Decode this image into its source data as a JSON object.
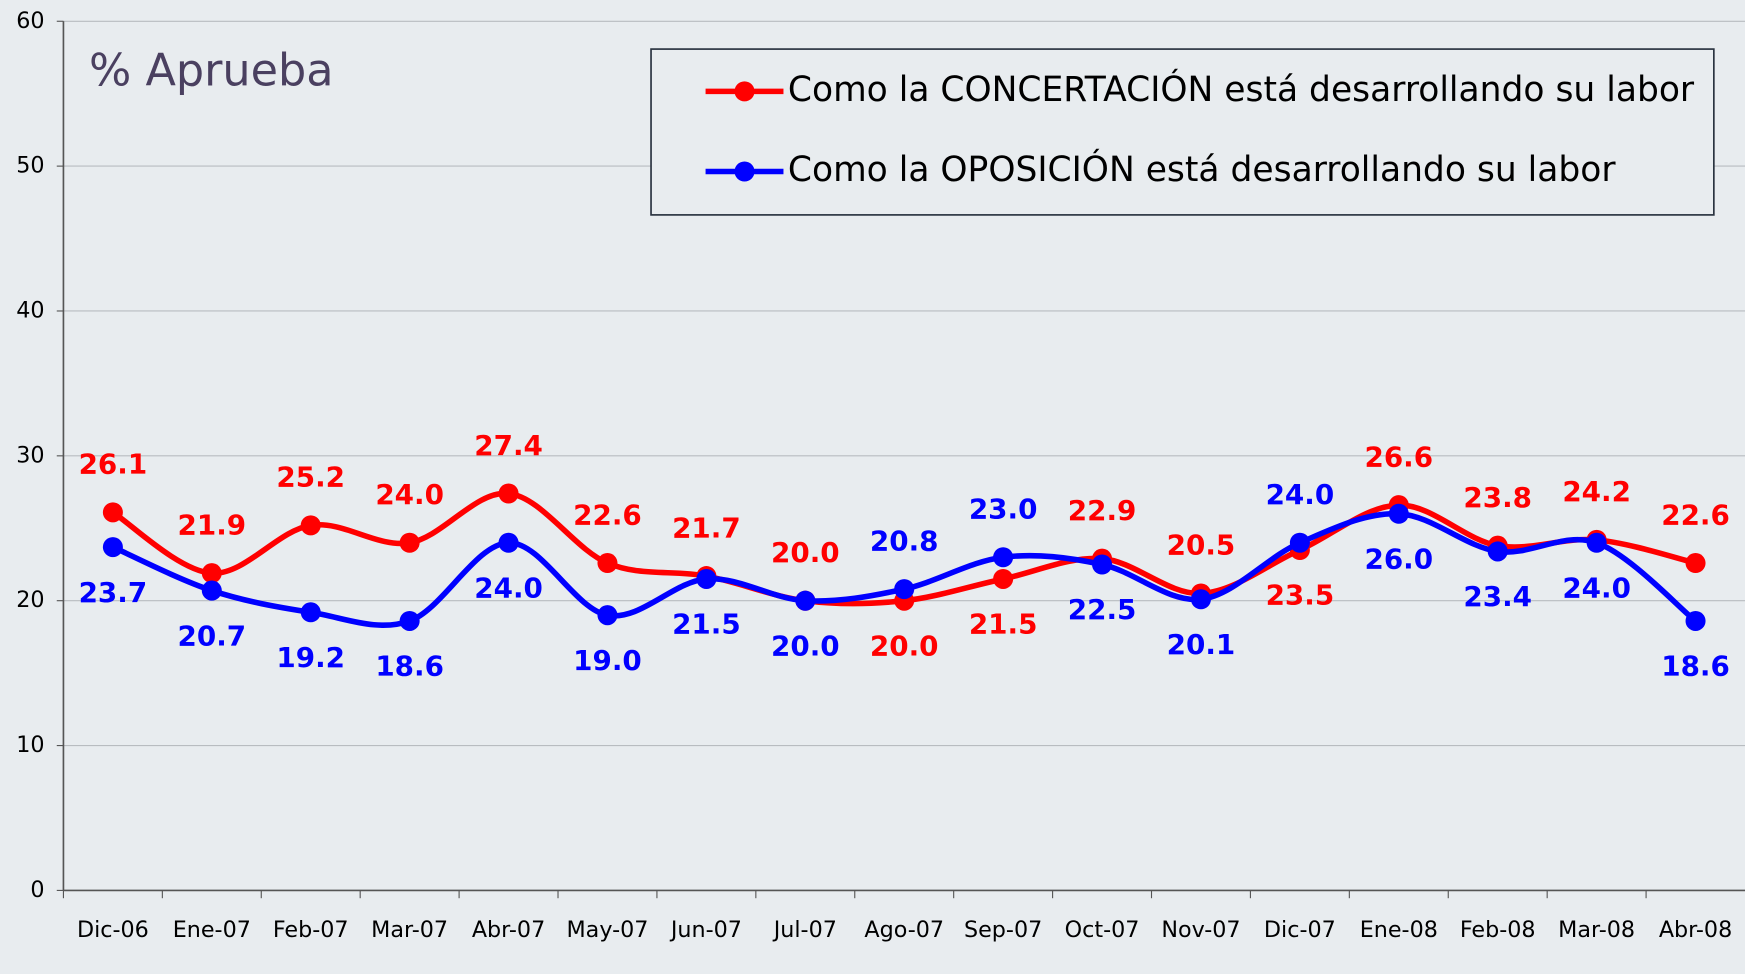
{
  "chart_data": {
    "type": "line",
    "title": "% Aprueba",
    "categories": [
      "Dic-06",
      "Ene-07",
      "Feb-07",
      "Mar-07",
      "Abr-07",
      "May-07",
      "Jun-07",
      "Jul-07",
      "Ago-07",
      "Sep-07",
      "Oct-07",
      "Nov-07",
      "Dic-07",
      "Ene-08",
      "Feb-08",
      "Mar-08",
      "Abr-08"
    ],
    "series": [
      {
        "name": "Como la CONCERTACIÓN está desarrollando su labor",
        "color": "#ff0000",
        "values": [
          26.1,
          21.9,
          25.2,
          24.0,
          27.4,
          22.6,
          21.7,
          20.0,
          20.0,
          21.5,
          22.9,
          20.5,
          23.5,
          26.6,
          23.8,
          24.2,
          22.6
        ],
        "value_labels": [
          "26.1",
          "21.9",
          "25.2",
          "24.0",
          "27.4",
          "22.6",
          "21.7",
          "20.0",
          "20.0",
          "21.5",
          "22.9",
          "20.5",
          "23.5",
          "26.6",
          "23.8",
          "24.2",
          "22.6"
        ]
      },
      {
        "name": "Como la OPOSICIÓN está desarrollando su labor",
        "color": "#0000ff",
        "values": [
          23.7,
          20.7,
          19.2,
          18.6,
          24.0,
          19.0,
          21.5,
          20.0,
          20.8,
          23.0,
          22.5,
          20.1,
          24.0,
          26.0,
          23.4,
          24.0,
          18.6
        ],
        "value_labels": [
          "23.7",
          "20.7",
          "19.2",
          "18.6",
          "24.0",
          "19.0",
          "21.5",
          "20.0",
          "20.8",
          "23.0",
          "22.5",
          "20.1",
          "24.0",
          "26.0",
          "23.4",
          "24.0",
          "18.6"
        ]
      }
    ],
    "ylim": [
      0,
      60
    ],
    "yticks": [
      0,
      10,
      20,
      30,
      40,
      50,
      60
    ],
    "grid": true,
    "legend": "top-right"
  }
}
